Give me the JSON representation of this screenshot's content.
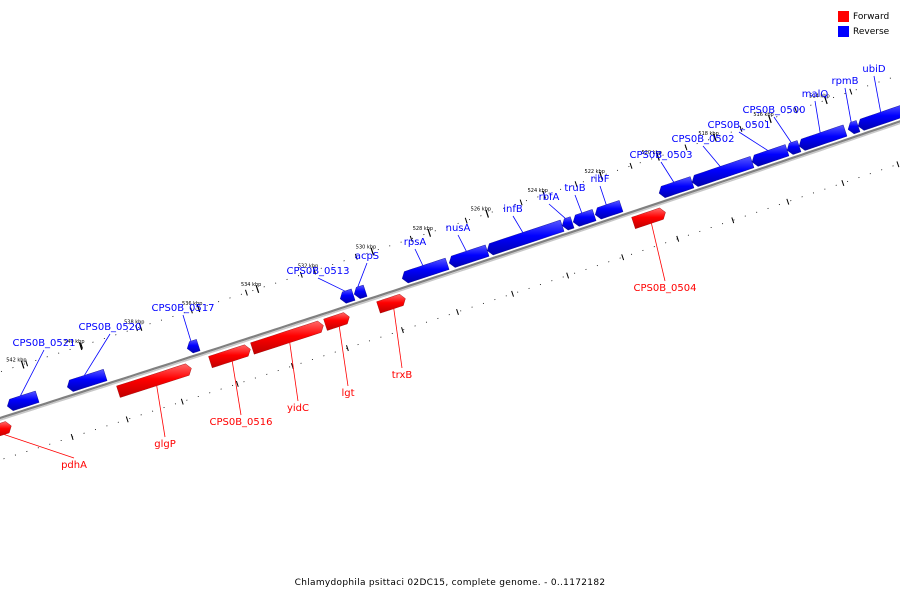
{
  "colors": {
    "forward": "#ff0000",
    "reverse": "#0000ff",
    "backbone": "#808080"
  },
  "legend": [
    {
      "label": "Forward",
      "color": "#ff0000"
    },
    {
      "label": "Reverse",
      "color": "#0000ff"
    }
  ],
  "footer": "Chlamydophila psittaci 02DC15, complete genome. - 0..1172182",
  "tick_labels": [
    "542 kbp",
    "540 kbp",
    "538 kbp",
    "536 kbp",
    "534 kbp",
    "532 kbp",
    "530 kbp",
    "528 kbp",
    "526 kbp",
    "524 kbp",
    "522 kbp",
    "520 kbp",
    "518 kbp",
    "516 kbp",
    "514 kbp"
  ],
  "genes": [
    {
      "name": "CPS0B_0521",
      "strand": "reverse"
    },
    {
      "name": "CPS0B_0520",
      "strand": "reverse"
    },
    {
      "name": "CPS0B_0517",
      "strand": "reverse"
    },
    {
      "name": "CPS0B_0513",
      "strand": "reverse"
    },
    {
      "name": "acpS",
      "strand": "reverse"
    },
    {
      "name": "rpsA",
      "strand": "reverse"
    },
    {
      "name": "nusA",
      "strand": "reverse"
    },
    {
      "name": "infB",
      "strand": "reverse"
    },
    {
      "name": "rbfA",
      "strand": "reverse"
    },
    {
      "name": "truB",
      "strand": "reverse"
    },
    {
      "name": "ribF",
      "strand": "reverse"
    },
    {
      "name": "CPS0B_0503",
      "strand": "reverse"
    },
    {
      "name": "CPS0B_0502",
      "strand": "reverse"
    },
    {
      "name": "CPS0B_0501",
      "strand": "reverse"
    },
    {
      "name": "CPS0B_0500",
      "strand": "reverse"
    },
    {
      "name": "malQ",
      "strand": "reverse"
    },
    {
      "name": "rpmB",
      "strand": "reverse"
    },
    {
      "name": "ubiD",
      "strand": "reverse"
    },
    {
      "name": "pdhA",
      "strand": "forward"
    },
    {
      "name": "glgP",
      "strand": "forward"
    },
    {
      "name": "CPS0B_0516",
      "strand": "forward"
    },
    {
      "name": "yidC",
      "strand": "forward"
    },
    {
      "name": "lgt",
      "strand": "forward"
    },
    {
      "name": "trxB",
      "strand": "forward"
    },
    {
      "name": "CPS0B_0504",
      "strand": "forward"
    }
  ]
}
